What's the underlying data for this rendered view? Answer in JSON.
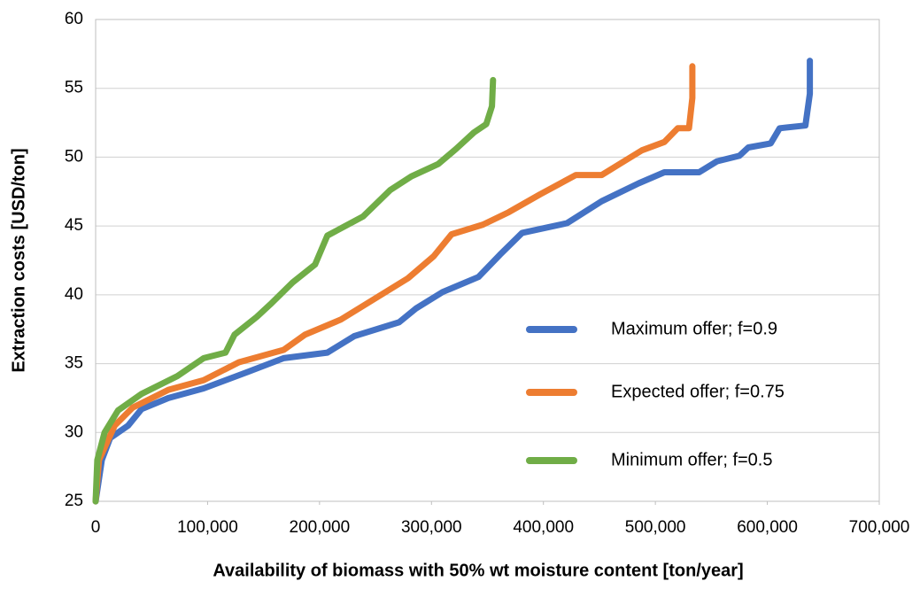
{
  "chart_data": {
    "type": "line",
    "xlabel": "Availability of biomass with 50% wt moisture content [ton/year]",
    "ylabel": "Extraction costs [USD/ton]",
    "xlim": [
      0,
      700000
    ],
    "ylim": [
      25,
      60
    ],
    "xticks": [
      0,
      {
        "value": 100000,
        "label": "100,000"
      },
      {
        "value": 200000,
        "label": "200,000"
      },
      {
        "value": 300000,
        "label": "300,000"
      },
      {
        "value": 400000,
        "label": "400,000"
      },
      {
        "value": 500000,
        "label": "500,000"
      },
      {
        "value": 600000,
        "label": "600,000"
      },
      {
        "value": 700000,
        "label": "700,000"
      }
    ],
    "yticks": [
      25,
      30,
      35,
      40,
      45,
      50,
      55,
      60
    ],
    "grid": true,
    "legend": "right",
    "series": [
      {
        "name": "Maximum offer; f=0.9",
        "color": "#4472c4",
        "x": [
          0,
          5500,
          13000,
          29000,
          41000,
          65000,
          96500,
          136000,
          168000,
          207000,
          231000,
          271000,
          286000,
          310000,
          342000,
          361000,
          381000,
          421000,
          452000,
          485000,
          508000,
          539000,
          555000,
          575000,
          583000,
          603000,
          611000,
          634000,
          638000,
          638000
        ],
        "values": [
          25,
          28,
          29.6,
          30.5,
          31.7,
          32.5,
          33.2,
          34.4,
          35.4,
          35.8,
          37,
          38,
          39,
          40.2,
          41.3,
          42.9,
          44.5,
          45.2,
          46.8,
          48.1,
          48.9,
          48.9,
          49.7,
          50.1,
          50.7,
          51,
          52.1,
          52.3,
          54.6,
          57
        ]
      },
      {
        "name": "Expected offer; f=0.75",
        "color": "#ed7d31",
        "x": [
          0,
          3000,
          17000,
          33000,
          65000,
          96500,
          128000,
          168000,
          187000,
          219000,
          243000,
          279000,
          302000,
          318000,
          346000,
          369000,
          397000,
          429000,
          452000,
          468000,
          488000,
          508000,
          520000,
          530000,
          533000,
          533000
        ],
        "values": [
          25,
          28,
          30.5,
          31.8,
          33.1,
          33.8,
          35.1,
          36,
          37.1,
          38.2,
          39.4,
          41.2,
          42.8,
          44.4,
          45.1,
          46,
          47.3,
          48.7,
          48.7,
          49.5,
          50.5,
          51.1,
          52.1,
          52.1,
          54.3,
          56.6
        ]
      },
      {
        "name": "Minimum offer; f=0.5",
        "color": "#70ad47",
        "x": [
          0,
          1500,
          8000,
          20000,
          41000,
          73000,
          96500,
          116000,
          124000,
          144000,
          156000,
          176000,
          196000,
          207000,
          239000,
          263000,
          282000,
          306000,
          322000,
          338000,
          349000,
          354000,
          355000
        ],
        "values": [
          25,
          28,
          30,
          31.6,
          32.8,
          34.1,
          35.4,
          35.8,
          37.1,
          38.4,
          39.3,
          40.9,
          42.2,
          44.3,
          45.7,
          47.6,
          48.6,
          49.5,
          50.6,
          51.8,
          52.4,
          53.7,
          55.6
        ]
      }
    ]
  }
}
